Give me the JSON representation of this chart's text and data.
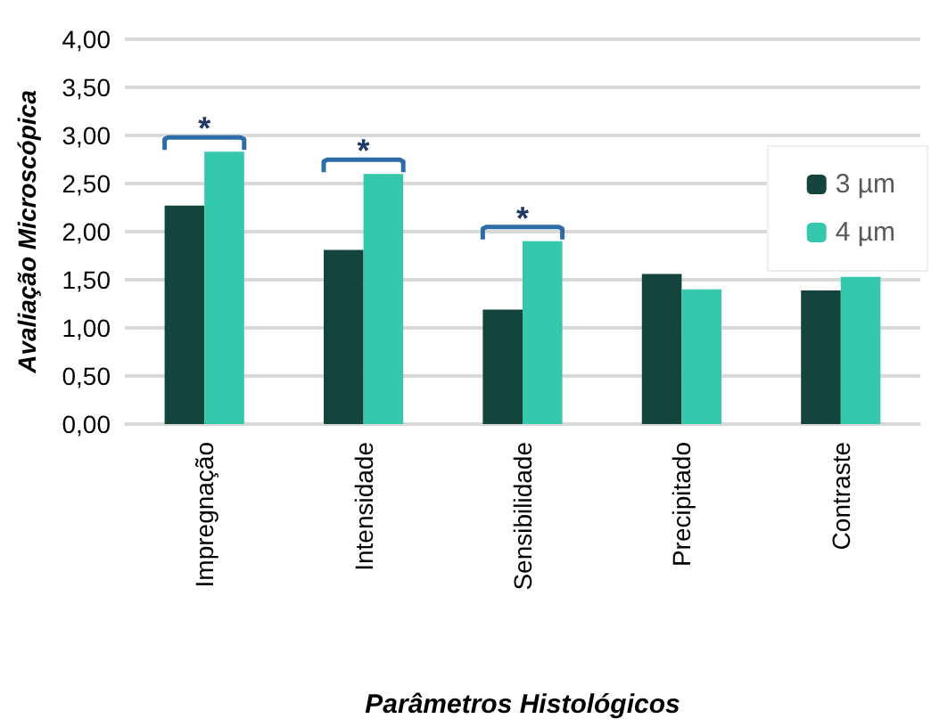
{
  "chart_data": {
    "type": "bar",
    "xlabel": "Parâmetros Histológicos",
    "ylabel": "Avaliação Microscópica",
    "categories": [
      "Impregnação",
      "Intensidade",
      "Sensibilidade",
      "Precipitado",
      "Contraste"
    ],
    "series": [
      {
        "name": "3 µm",
        "color": "#14453d",
        "values": [
          2.27,
          1.81,
          1.19,
          1.56,
          1.39
        ]
      },
      {
        "name": "4 µm",
        "color": "#35c8ac",
        "values": [
          2.83,
          2.6,
          1.9,
          1.4,
          1.53
        ]
      }
    ],
    "ylim": [
      0,
      4
    ],
    "yticks": [
      {
        "value": 0,
        "label": "0,00"
      },
      {
        "value": 0.5,
        "label": "0,50"
      },
      {
        "value": 1,
        "label": "1,00"
      },
      {
        "value": 1.5,
        "label": "1,50"
      },
      {
        "value": 2,
        "label": "2,00"
      },
      {
        "value": 2.5,
        "label": "2,50"
      },
      {
        "value": 3,
        "label": "3,00"
      },
      {
        "value": 3.5,
        "label": "3,50"
      },
      {
        "value": 4,
        "label": "4,00"
      }
    ],
    "grid": "y",
    "legend": "right",
    "annotations": [
      "*",
      "*",
      "*"
    ]
  }
}
